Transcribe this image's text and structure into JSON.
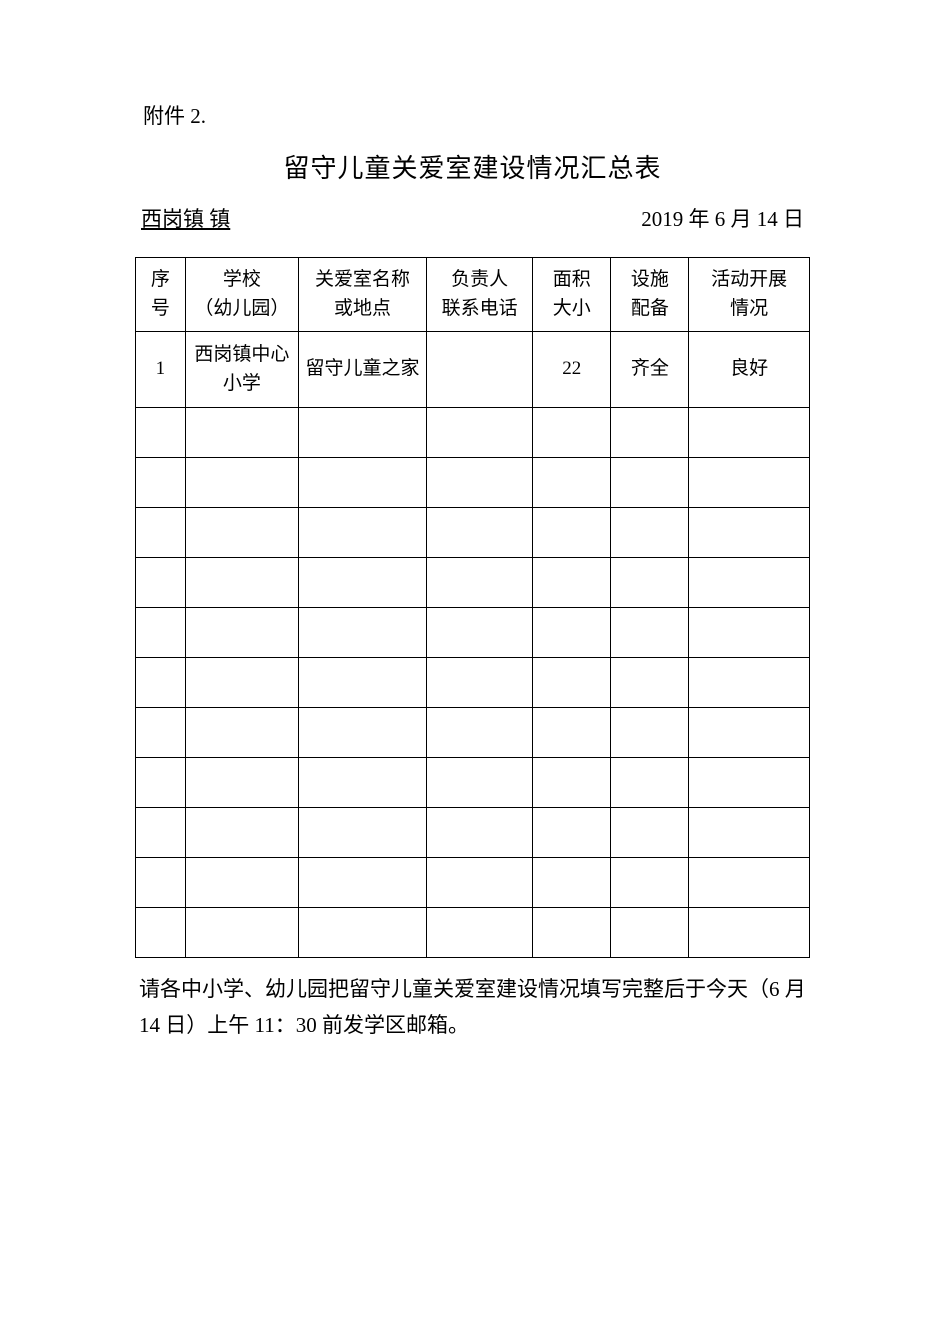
{
  "attachment_label": "附件 2.",
  "title": "留守儿童关爱室建设情况汇总表",
  "location_label": " 西岗镇  镇",
  "date_label": "2019 年 6 月 14 日",
  "table": {
    "columns": [
      {
        "line1": "序",
        "line2": "号"
      },
      {
        "line1": "学校",
        "line2": "（幼儿园）"
      },
      {
        "line1": "关爱室名称",
        "line2": "或地点"
      },
      {
        "line1": "负责人",
        "line2": "联系电话"
      },
      {
        "line1": "面积",
        "line2": "大小"
      },
      {
        "line1": "设施",
        "line2": "配备"
      },
      {
        "line1": "活动开展",
        "line2": "情况"
      }
    ],
    "rows": [
      {
        "seq": "1",
        "school": "西岗镇中心小学",
        "room": "留守儿童之家",
        "contact": "",
        "area": "22",
        "facility": "齐全",
        "activity": "良好"
      },
      {
        "seq": "",
        "school": "",
        "room": "",
        "contact": "",
        "area": "",
        "facility": "",
        "activity": ""
      },
      {
        "seq": "",
        "school": "",
        "room": "",
        "contact": "",
        "area": "",
        "facility": "",
        "activity": ""
      },
      {
        "seq": "",
        "school": "",
        "room": "",
        "contact": "",
        "area": "",
        "facility": "",
        "activity": ""
      },
      {
        "seq": "",
        "school": "",
        "room": "",
        "contact": "",
        "area": "",
        "facility": "",
        "activity": ""
      },
      {
        "seq": "",
        "school": "",
        "room": "",
        "contact": "",
        "area": "",
        "facility": "",
        "activity": ""
      },
      {
        "seq": "",
        "school": "",
        "room": "",
        "contact": "",
        "area": "",
        "facility": "",
        "activity": ""
      },
      {
        "seq": "",
        "school": "",
        "room": "",
        "contact": "",
        "area": "",
        "facility": "",
        "activity": ""
      },
      {
        "seq": "",
        "school": "",
        "room": "",
        "contact": "",
        "area": "",
        "facility": "",
        "activity": ""
      },
      {
        "seq": "",
        "school": "",
        "room": "",
        "contact": "",
        "area": "",
        "facility": "",
        "activity": ""
      },
      {
        "seq": "",
        "school": "",
        "room": "",
        "contact": "",
        "area": "",
        "facility": "",
        "activity": ""
      },
      {
        "seq": "",
        "school": "",
        "room": "",
        "contact": "",
        "area": "",
        "facility": "",
        "activity": ""
      }
    ]
  },
  "note": "请各中小学、幼儿园把留守儿童关爱室建设情况填写完整后于今天（6 月 14 日）上午 11：30 前发学区邮箱。"
}
